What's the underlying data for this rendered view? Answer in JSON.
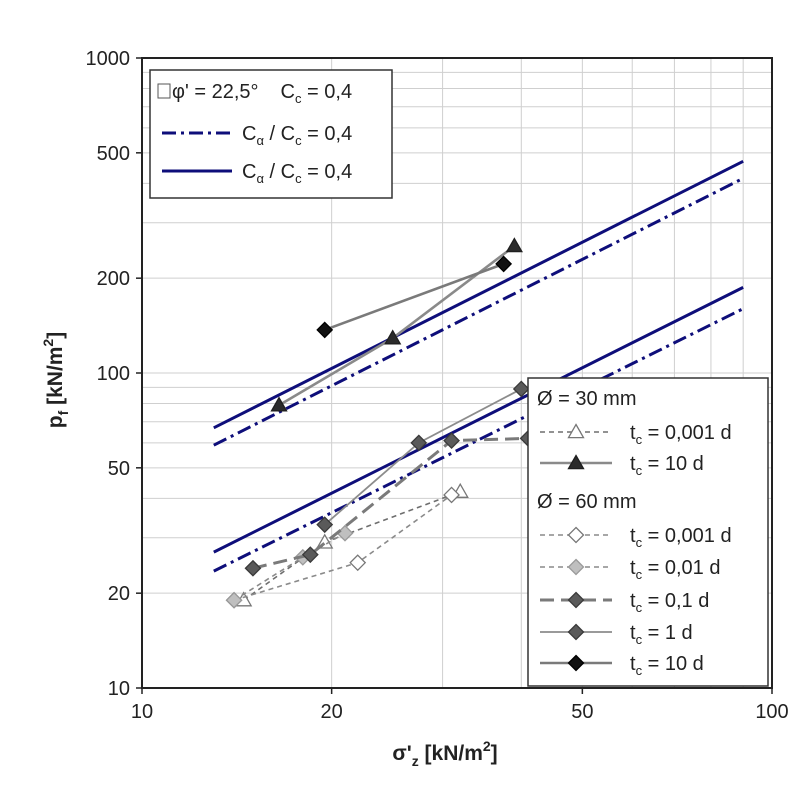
{
  "chart_data": {
    "type": "line",
    "x_scale": "log",
    "y_scale": "log",
    "xlim": [
      10,
      100
    ],
    "ylim": [
      10,
      1000
    ],
    "grid": true,
    "x_ticks": [
      "10",
      "20",
      "50",
      "100"
    ],
    "y_ticks": [
      "10",
      "20",
      "50",
      "100",
      "200",
      "500",
      "1000"
    ],
    "minor_ticks_x": [
      30,
      40,
      60,
      70,
      80,
      90
    ],
    "minor_ticks_y": [
      30,
      40,
      60,
      70,
      80,
      90,
      300,
      400,
      600,
      700,
      800,
      900
    ],
    "xlabel": {
      "main": "σ'",
      "sub": "z",
      "unit": " [kN/m",
      "sup": "2",
      "close": "]"
    },
    "ylabel": {
      "main": "p",
      "sub": "f",
      "unit": " [kN/m",
      "sup": "2",
      "close": "]"
    },
    "legend_top": {
      "position": "top-left",
      "header": {
        "phi": "φ' = 22,5°",
        "cc": "C",
        "cc_sub": "c",
        "cc_val": " = 0,4"
      },
      "items": [
        {
          "style": "dashdot",
          "a": "C",
          "a_sub": "α",
          "sep": " / C",
          "c_sub": "c",
          "val": " = 0,4"
        },
        {
          "style": "solid",
          "a": "C",
          "a_sub": "α",
          "sep": " / C",
          "c_sub": "c",
          "val": " = 0,4"
        }
      ]
    },
    "legend_bottom": {
      "position": "bottom-right",
      "group1": "Ø = 30 mm",
      "group1_items": [
        {
          "t": "t",
          "sub": "c",
          "val": " = 0,001 d"
        },
        {
          "t": "t",
          "sub": "c",
          "val": " = 10 d"
        }
      ],
      "group2": "Ø = 60 mm",
      "group2_items": [
        {
          "t": "t",
          "sub": "c",
          "val": " = 0,001 d"
        },
        {
          "t": "t",
          "sub": "c",
          "val": " = 0,01 d"
        },
        {
          "t": "t",
          "sub": "c",
          "val": " = 0,1 d"
        },
        {
          "t": "t",
          "sub": "c",
          "val": " = 1 d"
        },
        {
          "t": "t",
          "sub": "c",
          "val": " = 10 d"
        }
      ]
    },
    "reference_lines": [
      {
        "style": "solid",
        "x": [
          13,
          90
        ],
        "y": [
          67,
          470
        ]
      },
      {
        "style": "dashdot",
        "x": [
          13,
          90
        ],
        "y": [
          59,
          415
        ]
      },
      {
        "style": "solid",
        "x": [
          13,
          90
        ],
        "y": [
          27,
          187
        ]
      },
      {
        "style": "dashdot",
        "x": [
          13,
          90
        ],
        "y": [
          23.5,
          160
        ]
      }
    ],
    "series": [
      {
        "group": "30mm",
        "label_index": 0,
        "marker": "triangle-open",
        "line": "dashed",
        "color": "#6e6e6e",
        "x": [
          14.5,
          19.5,
          32
        ],
        "y": [
          19,
          29,
          42
        ]
      },
      {
        "group": "30mm",
        "label_index": 1,
        "marker": "triangle-filled",
        "line": "solid",
        "color": "#8a8a8a",
        "x": [
          16.5,
          25,
          39
        ],
        "y": [
          79,
          129,
          253
        ]
      },
      {
        "group": "60mm",
        "label_index": 0,
        "marker": "diamond-open",
        "line": "dashed",
        "color": "#8a8a8a",
        "x": [
          14,
          22,
          31
        ],
        "y": [
          19,
          25,
          41
        ]
      },
      {
        "group": "60mm",
        "label_index": 1,
        "marker": "diamond-grey",
        "line": "dashed",
        "color": "#8a8a8a",
        "x": [
          14,
          18,
          21
        ],
        "y": [
          19,
          26,
          31
        ]
      },
      {
        "group": "60mm",
        "label_index": 2,
        "marker": "diamond-filled",
        "line": "longdash",
        "color": "#7a7a7a",
        "x": [
          15,
          18.5,
          31,
          41
        ],
        "y": [
          24,
          26.5,
          61,
          62
        ]
      },
      {
        "group": "60mm",
        "label_index": 3,
        "marker": "diamond-filled",
        "line": "solid",
        "color": "#8c8c8c",
        "x": [
          19.5,
          27.5,
          40
        ],
        "y": [
          33,
          60,
          89
        ]
      },
      {
        "group": "60mm",
        "label_index": 4,
        "marker": "diamond-black",
        "line": "solid",
        "color": "#7a7a7a",
        "x": [
          19.5,
          37.5
        ],
        "y": [
          137,
          222
        ]
      }
    ]
  }
}
